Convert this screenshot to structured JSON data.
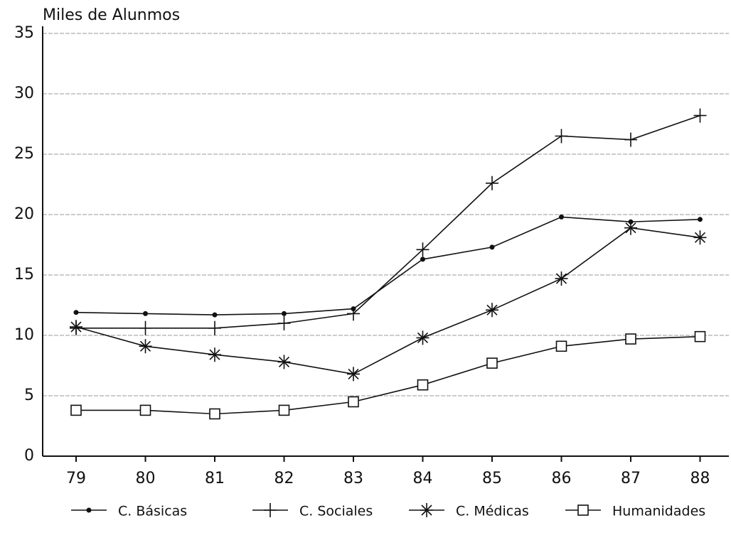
{
  "chart_data": {
    "type": "line",
    "ylabel": "Miles de Alunmos",
    "categories": [
      "79",
      "80",
      "81",
      "82",
      "83",
      "84",
      "85",
      "86",
      "87",
      "88"
    ],
    "series": [
      {
        "name": "C. Básicas",
        "color": "#111111",
        "marker": "dot",
        "values": [
          11.9,
          11.8,
          11.7,
          11.8,
          12.2,
          16.3,
          17.3,
          19.8,
          19.4,
          19.6
        ]
      },
      {
        "name": "C. Sociales",
        "color": "#111111",
        "marker": "plus",
        "values": [
          10.6,
          10.6,
          10.6,
          11,
          11.8,
          17.1,
          22.6,
          26.5,
          26.2,
          28.2
        ]
      },
      {
        "name": "C. Médicas",
        "color": "#111111",
        "marker": "asterisk",
        "values": [
          10.7,
          9.1,
          8.4,
          7.8,
          6.8,
          9.8,
          12.1,
          14.7,
          18.9,
          18.1
        ]
      },
      {
        "name": "Humanidades",
        "color": "#111111",
        "marker": "square",
        "values": [
          3.8,
          3.8,
          3.5,
          3.8,
          4.5,
          5.9,
          7.7,
          9.1,
          9.7,
          9.9
        ]
      }
    ],
    "ylim": [
      0,
      35
    ],
    "yticks": [
      0,
      5,
      10,
      15,
      20,
      25,
      30,
      35
    ],
    "grid": true,
    "legend": "bottom"
  }
}
